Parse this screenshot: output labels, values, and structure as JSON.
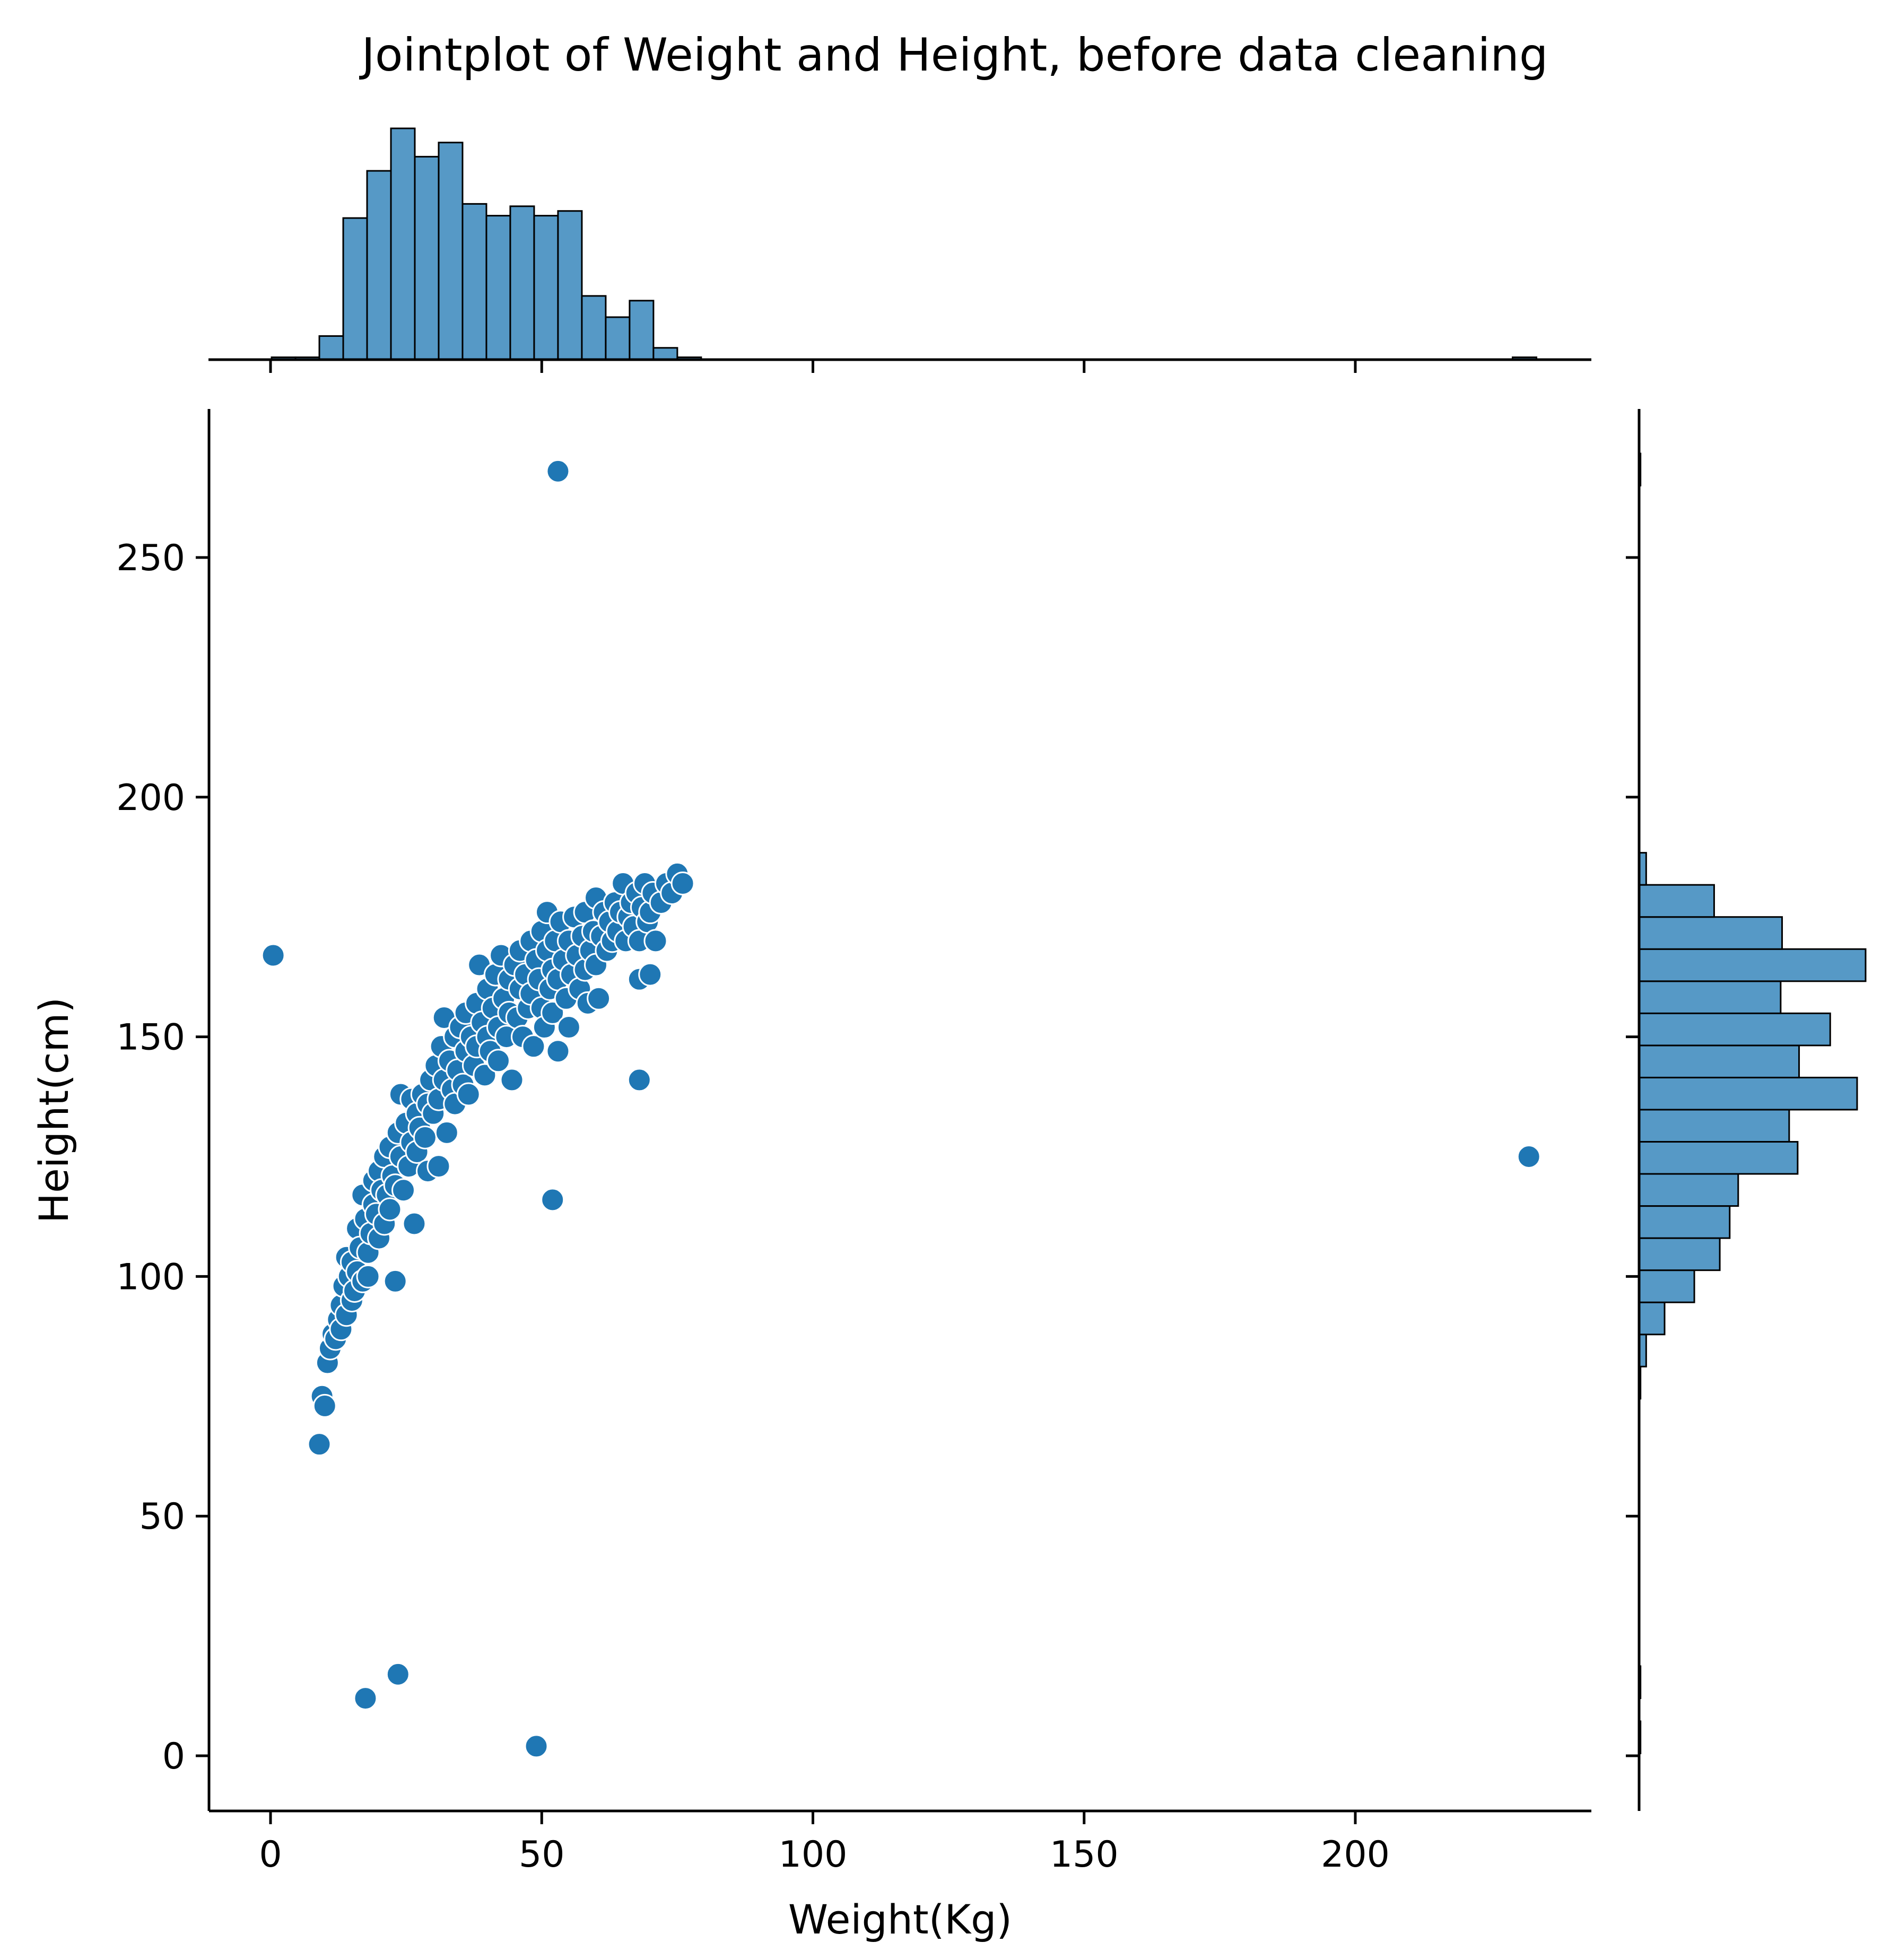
{
  "chart_data": {
    "type": "scatter",
    "title": "Jointplot of Weight and Height, before data cleaning",
    "xlabel": "Weight(Kg)",
    "ylabel": "Height(cm)",
    "xlim": [
      -12,
      244
    ],
    "ylim": [
      -12,
      280
    ],
    "x_ticks": [
      "0",
      "50",
      "100",
      "150",
      "200"
    ],
    "y_ticks": [
      "0",
      "50",
      "100",
      "150",
      "200",
      "250"
    ],
    "colors": {
      "marker": "#1f77b4",
      "bar_fill": "#5699c6",
      "edge": "#000000"
    },
    "main_cluster": {
      "description_points": "dense curved cluster between Weight 10 and 77",
      "points": [
        [
          9.0,
          65
        ],
        [
          9.5,
          75
        ],
        [
          10,
          73
        ],
        [
          10.5,
          82
        ],
        [
          11,
          85
        ],
        [
          11.5,
          88
        ],
        [
          12,
          87
        ],
        [
          12.5,
          91
        ],
        [
          13,
          89
        ],
        [
          13,
          94
        ],
        [
          13.5,
          98
        ],
        [
          14,
          92
        ],
        [
          14,
          104
        ],
        [
          14.5,
          100
        ],
        [
          15,
          95
        ],
        [
          15,
          103
        ],
        [
          15.5,
          97
        ],
        [
          16,
          110
        ],
        [
          16,
          101
        ],
        [
          16.5,
          106
        ],
        [
          17,
          99
        ],
        [
          17,
          117
        ],
        [
          17.5,
          112
        ],
        [
          18,
          105
        ],
        [
          18,
          100
        ],
        [
          18.5,
          109
        ],
        [
          19,
          115
        ],
        [
          19,
          120
        ],
        [
          19.5,
          113
        ],
        [
          20,
          108
        ],
        [
          20,
          122
        ],
        [
          20.5,
          118
        ],
        [
          21,
          111
        ],
        [
          21,
          125
        ],
        [
          21.5,
          117
        ],
        [
          22,
          114
        ],
        [
          22,
          127
        ],
        [
          22.5,
          121
        ],
        [
          23,
          119
        ],
        [
          23,
          99
        ],
        [
          23.5,
          130
        ],
        [
          24,
          125
        ],
        [
          24,
          138
        ],
        [
          24.5,
          118
        ],
        [
          25,
          132
        ],
        [
          25.5,
          123
        ],
        [
          26,
          128
        ],
        [
          26,
          137
        ],
        [
          26.5,
          111
        ],
        [
          27,
          126
        ],
        [
          27,
          134
        ],
        [
          27.5,
          131
        ],
        [
          28,
          138
        ],
        [
          28.5,
          129
        ],
        [
          29,
          122
        ],
        [
          29,
          136
        ],
        [
          29.5,
          141
        ],
        [
          30,
          134
        ],
        [
          30.5,
          144
        ],
        [
          31,
          137
        ],
        [
          31,
          123
        ],
        [
          31.5,
          148
        ],
        [
          32,
          141
        ],
        [
          32,
          154
        ],
        [
          32.5,
          130
        ],
        [
          33,
          145
        ],
        [
          33.5,
          139
        ],
        [
          34,
          150
        ],
        [
          34,
          136
        ],
        [
          34.5,
          143
        ],
        [
          35,
          152
        ],
        [
          35.5,
          140
        ],
        [
          36,
          147
        ],
        [
          36,
          155
        ],
        [
          36.5,
          138
        ],
        [
          37,
          150
        ],
        [
          37.5,
          144
        ],
        [
          38,
          157
        ],
        [
          38,
          148
        ],
        [
          38.5,
          165
        ],
        [
          39,
          153
        ],
        [
          39.5,
          142
        ],
        [
          40,
          160
        ],
        [
          40,
          150
        ],
        [
          40.5,
          147
        ],
        [
          41,
          156
        ],
        [
          41.5,
          163
        ],
        [
          42,
          152
        ],
        [
          42,
          145
        ],
        [
          42.5,
          167
        ],
        [
          43,
          158
        ],
        [
          43.5,
          150
        ],
        [
          44,
          162
        ],
        [
          44,
          155
        ],
        [
          44.5,
          141
        ],
        [
          45,
          165
        ],
        [
          45.5,
          154
        ],
        [
          46,
          160
        ],
        [
          46,
          168
        ],
        [
          46.5,
          150
        ],
        [
          47,
          163
        ],
        [
          47.5,
          156
        ],
        [
          48,
          170
        ],
        [
          48,
          159
        ],
        [
          48.5,
          148
        ],
        [
          49,
          166
        ],
        [
          49.5,
          162
        ],
        [
          50,
          156
        ],
        [
          50,
          172
        ],
        [
          50.5,
          152
        ],
        [
          51,
          168
        ],
        [
          51,
          176
        ],
        [
          51.5,
          160
        ],
        [
          52,
          164
        ],
        [
          52,
          155
        ],
        [
          52.5,
          170
        ],
        [
          53,
          162
        ],
        [
          53,
          147
        ],
        [
          53.5,
          174
        ],
        [
          54,
          166
        ],
        [
          54.5,
          158
        ],
        [
          55,
          170
        ],
        [
          55,
          152
        ],
        [
          55.5,
          163
        ],
        [
          56,
          175
        ],
        [
          56.5,
          167
        ],
        [
          57,
          160
        ],
        [
          57.5,
          171
        ],
        [
          58,
          164
        ],
        [
          58,
          176
        ],
        [
          58.5,
          157
        ],
        [
          59,
          168
        ],
        [
          59.5,
          172
        ],
        [
          60,
          165
        ],
        [
          60,
          179
        ],
        [
          60.5,
          158
        ],
        [
          61,
          171
        ],
        [
          61.5,
          176
        ],
        [
          62,
          168
        ],
        [
          62.5,
          174
        ],
        [
          63,
          170
        ],
        [
          63.5,
          178
        ],
        [
          64,
          172
        ],
        [
          64.5,
          176
        ],
        [
          65,
          182
        ],
        [
          65.5,
          170
        ],
        [
          66,
          175
        ],
        [
          66.5,
          178
        ],
        [
          67,
          173
        ],
        [
          67.5,
          180
        ],
        [
          68,
          162
        ],
        [
          68,
          170
        ],
        [
          68.5,
          177
        ],
        [
          69,
          182
        ],
        [
          69.5,
          174
        ],
        [
          70,
          176
        ],
        [
          70,
          163
        ],
        [
          70.5,
          180
        ],
        [
          71,
          170
        ],
        [
          72,
          178
        ],
        [
          73,
          182
        ],
        [
          74,
          180
        ],
        [
          75,
          184
        ],
        [
          76,
          182
        ]
      ]
    },
    "outliers": [
      [
        0.5,
        167
      ],
      [
        53,
        268
      ],
      [
        68,
        141
      ],
      [
        52,
        116
      ],
      [
        232,
        125
      ],
      [
        17.5,
        12
      ],
      [
        23.5,
        17
      ],
      [
        49,
        2
      ]
    ],
    "x_marginal_hist": {
      "bin_width": 4.4,
      "bins_start": [
        0.2,
        4.6,
        9.0,
        13.4,
        17.8,
        22.2,
        26.6,
        31.0,
        35.4,
        39.8,
        44.2,
        48.6,
        53.0,
        57.4,
        61.8,
        66.2,
        70.6,
        75.0,
        229.0
      ],
      "counts": [
        1,
        1,
        10,
        60,
        80,
        98,
        86,
        92,
        66,
        61,
        65,
        61,
        63,
        27,
        18,
        25,
        5,
        1,
        1
      ]
    },
    "y_marginal_hist": {
      "bin_width": 6.7,
      "bins_start": [
        0.5,
        12.0,
        74.5,
        81.2,
        87.9,
        94.6,
        101.3,
        108.0,
        114.7,
        121.4,
        128.1,
        134.8,
        141.5,
        148.2,
        154.9,
        161.6,
        168.3,
        175.0,
        181.7,
        265.0
      ],
      "counts": [
        1,
        1,
        1,
        5,
        18,
        39,
        57,
        64,
        70,
        112,
        106,
        154,
        113,
        135,
        100,
        160,
        101,
        53,
        5,
        1
      ]
    }
  }
}
